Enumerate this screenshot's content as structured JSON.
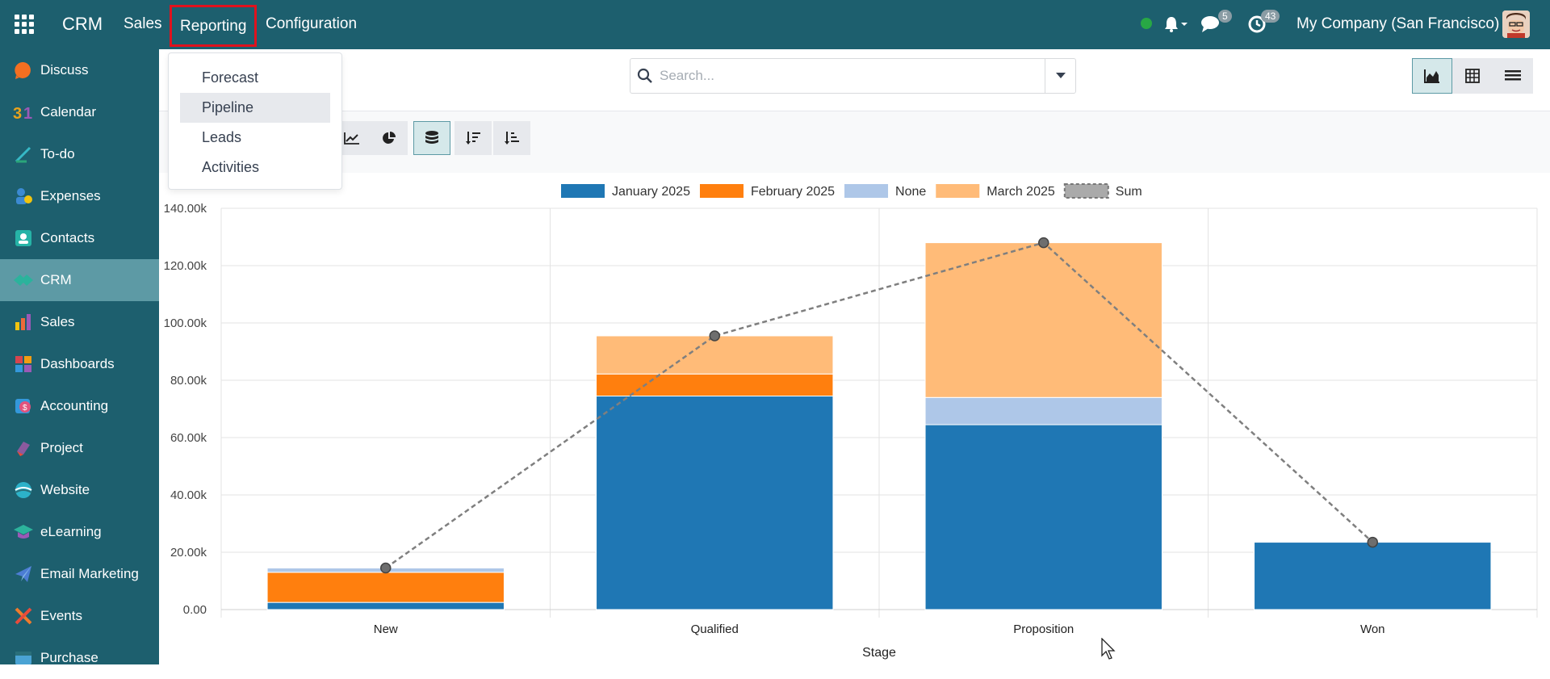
{
  "navbar": {
    "brand": "CRM",
    "menus": [
      "Sales",
      "Reporting",
      "Configuration"
    ],
    "chat_count": "5",
    "activity_count": "43",
    "company": "My Company (San Francisco)"
  },
  "sidebar": {
    "items": [
      {
        "label": "Discuss",
        "icon": "discuss-icon",
        "color": "#f36f21"
      },
      {
        "label": "Calendar",
        "icon": "calendar-icon",
        "color": "#e8a21c"
      },
      {
        "label": "To-do",
        "icon": "todo-icon",
        "color": "#36b9c6"
      },
      {
        "label": "Expenses",
        "icon": "expenses-icon",
        "color": "#3c8ad2"
      },
      {
        "label": "Contacts",
        "icon": "contacts-icon",
        "color": "#26b3a7"
      },
      {
        "label": "CRM",
        "icon": "crm-icon",
        "color": "#2bb39c"
      },
      {
        "label": "Sales",
        "icon": "sales-icon",
        "color": "#ec6a3a"
      },
      {
        "label": "Dashboards",
        "icon": "dashboards-icon",
        "color": "#d6454f"
      },
      {
        "label": "Accounting",
        "icon": "accounting-icon",
        "color": "#e2537d"
      },
      {
        "label": "Project",
        "icon": "project-icon",
        "color": "#8b5a9e"
      },
      {
        "label": "Website",
        "icon": "website-icon",
        "color": "#2cb2c9"
      },
      {
        "label": "eLearning",
        "icon": "elearning-icon",
        "color": "#2cb39c"
      },
      {
        "label": "Email Marketing",
        "icon": "email-marketing-icon",
        "color": "#4c7dd4"
      },
      {
        "label": "Events",
        "icon": "events-icon",
        "color": "#f07b2c"
      },
      {
        "label": "Purchase",
        "icon": "purchase-icon",
        "color": "#4aa3d4"
      }
    ],
    "active": "CRM"
  },
  "search": {
    "placeholder": "Search..."
  },
  "dropdown": {
    "items": [
      "Forecast",
      "Pipeline",
      "Leads",
      "Activities"
    ],
    "hovered": "Pipeline"
  },
  "colors": {
    "navbar": "#1d5f6e",
    "accent": "#5d9aa5",
    "highlight_box": "#e0121d",
    "jan": "#1f77b4",
    "feb": "#ff7f0e",
    "none": "#aec7e8",
    "mar": "#ffbb78",
    "sum": "#7f7f7f"
  },
  "chart_data": {
    "type": "bar",
    "stacked": true,
    "categories": [
      "New",
      "Qualified",
      "Proposition",
      "Won"
    ],
    "series": [
      {
        "name": "January 2025",
        "values": [
          2500,
          74500,
          64500,
          23500
        ]
      },
      {
        "name": "February 2025",
        "values": [
          10500,
          7700,
          0,
          0
        ]
      },
      {
        "name": "None",
        "values": [
          1500,
          0,
          9500,
          0
        ]
      },
      {
        "name": "March 2025",
        "values": [
          0,
          13300,
          54000,
          0
        ]
      }
    ],
    "line": {
      "name": "Sum",
      "values": [
        14500,
        95500,
        128000,
        23500
      ],
      "style": "dashed"
    },
    "xlabel": "Stage",
    "ylabel": "",
    "ylim": [
      0,
      140000
    ],
    "yticks": [
      "0.00",
      "20.00k",
      "40.00k",
      "60.00k",
      "80.00k",
      "100.00k",
      "120.00k",
      "140.00k"
    ],
    "grid": true,
    "legend": "top-center"
  }
}
